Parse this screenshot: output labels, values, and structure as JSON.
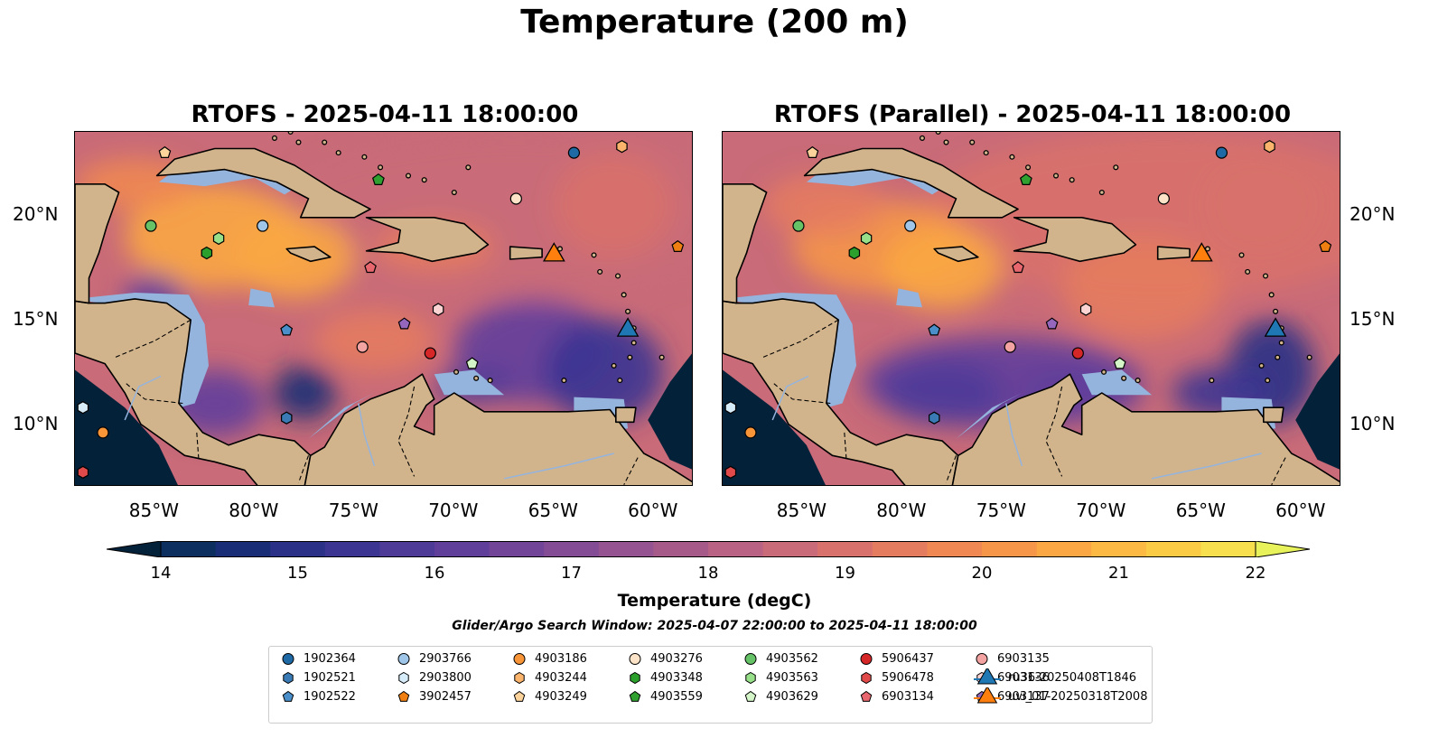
{
  "suptitle": "Temperature (200 m)",
  "panels": [
    {
      "title": "RTOFS - 2025-04-11 18:00:00"
    },
    {
      "title": "RTOFS (Parallel) - 2025-04-11 18:00:00"
    }
  ],
  "map_extent": {
    "lon": [
      -89,
      -58
    ],
    "lat": [
      7,
      24
    ]
  },
  "lon_ticks": [
    "85°W",
    "80°W",
    "75°W",
    "70°W",
    "65°W",
    "60°W"
  ],
  "lat_ticks": [
    "20°N",
    "15°N",
    "10°N"
  ],
  "colorbar": {
    "label": "Temperature (degC)",
    "ticks": [
      "14",
      "15",
      "16",
      "17",
      "18",
      "19",
      "20",
      "21",
      "22"
    ],
    "range": [
      14,
      22
    ],
    "step": 0.5,
    "extend": "both",
    "colors": [
      "#04213a",
      "#0c2f5f",
      "#182d76",
      "#2a3186",
      "#3c3592",
      "#4e3b98",
      "#603f9b",
      "#724599",
      "#844c95",
      "#955491",
      "#a65a89",
      "#b96283",
      "#c96b78",
      "#d8716c",
      "#e47c5f",
      "#ef8852",
      "#f59648",
      "#faa744",
      "#fcb944",
      "#fbcb45",
      "#f8df4d",
      "#e8f25a"
    ]
  },
  "search_window": "Glider/Argo Search Window: 2025-04-07 22:00:00 to 2025-04-11 18:00:00",
  "colors": {
    "land": "#d2b48c",
    "shelf": "#94b4de",
    "deep_ocean": "#04213a"
  },
  "legend": [
    {
      "label": "1902364",
      "shape": "circle",
      "color": "#1f6aa5"
    },
    {
      "label": "1902521",
      "shape": "hexagon",
      "color": "#3a7bb5"
    },
    {
      "label": "1902522",
      "shape": "pentagon",
      "color": "#4a8fc9"
    },
    {
      "label": "2903766",
      "shape": "circle",
      "color": "#9fc6e8"
    },
    {
      "label": "2903800",
      "shape": "hexagon",
      "color": "#d7ecf9"
    },
    {
      "label": "3902457",
      "shape": "pentagon",
      "color": "#f07f12"
    },
    {
      "label": "4903186",
      "shape": "circle",
      "color": "#f79538"
    },
    {
      "label": "4903244",
      "shape": "hexagon",
      "color": "#fbb46c"
    },
    {
      "label": "4903249",
      "shape": "pentagon",
      "color": "#fdd39c"
    },
    {
      "label": "4903276",
      "shape": "circle",
      "color": "#fde4c8"
    },
    {
      "label": "4903348",
      "shape": "hexagon",
      "color": "#2ca02c"
    },
    {
      "label": "4903559",
      "shape": "pentagon",
      "color": "#30a030"
    },
    {
      "label": "4903562",
      "shape": "circle",
      "color": "#66c266"
    },
    {
      "label": "4903563",
      "shape": "hexagon",
      "color": "#98df8a"
    },
    {
      "label": "4903629",
      "shape": "pentagon",
      "color": "#d4f5c8"
    },
    {
      "label": "5906437",
      "shape": "circle",
      "color": "#d62728"
    },
    {
      "label": "5906478",
      "shape": "hexagon",
      "color": "#e04a4a"
    },
    {
      "label": "6903134",
      "shape": "pentagon",
      "color": "#e8666e"
    },
    {
      "label": "6903135",
      "shape": "circle",
      "color": "#f4a3a3"
    },
    {
      "label": "6903136",
      "shape": "hexagon",
      "color": "#fcd3d3"
    },
    {
      "label": "6903137",
      "shape": "pentagon",
      "color": "#9467bd"
    },
    {
      "label": "ru36-20250408T1846",
      "shape": "triangle",
      "color": "#1f77b4"
    },
    {
      "label": "uvi_01-20250318T2008",
      "shape": "triangle",
      "color": "#ff7f0e"
    }
  ],
  "markers": [
    {
      "id": "1902364",
      "lon": -64.0,
      "lat": 23.0
    },
    {
      "id": "1902521",
      "lon": -78.4,
      "lat": 10.3
    },
    {
      "id": "1902522",
      "lon": -78.4,
      "lat": 14.5
    },
    {
      "id": "2903766",
      "lon": -79.6,
      "lat": 19.5
    },
    {
      "id": "2903800",
      "lon": -88.6,
      "lat": 10.8
    },
    {
      "id": "3902457",
      "lon": -58.8,
      "lat": 18.5
    },
    {
      "id": "4903186",
      "lon": -87.6,
      "lat": 9.6
    },
    {
      "id": "4903244",
      "lon": -61.6,
      "lat": 23.3
    },
    {
      "id": "4903249",
      "lon": -84.5,
      "lat": 23.0
    },
    {
      "id": "4903276",
      "lon": -66.9,
      "lat": 20.8
    },
    {
      "id": "4903348",
      "lon": -82.4,
      "lat": 18.2
    },
    {
      "id": "4903559",
      "lon": -73.8,
      "lat": 21.7
    },
    {
      "id": "4903562",
      "lon": -85.2,
      "lat": 19.5
    },
    {
      "id": "4903563",
      "lon": -81.8,
      "lat": 18.9
    },
    {
      "id": "4903629",
      "lon": -69.1,
      "lat": 12.9
    },
    {
      "id": "5906437",
      "lon": -71.2,
      "lat": 13.4
    },
    {
      "id": "5906478",
      "lon": -88.6,
      "lat": 7.7
    },
    {
      "id": "6903134",
      "lon": -74.2,
      "lat": 17.5
    },
    {
      "id": "6903135",
      "lon": -74.6,
      "lat": 13.7
    },
    {
      "id": "6903136",
      "lon": -70.8,
      "lat": 15.5
    },
    {
      "id": "6903137",
      "lon": -72.5,
      "lat": 14.8
    },
    {
      "id": "ru36-20250408T1846",
      "lon": -61.3,
      "lat": 14.5
    },
    {
      "id": "uvi_01-20250318T2008",
      "lon": -65.0,
      "lat": 18.1
    }
  ]
}
